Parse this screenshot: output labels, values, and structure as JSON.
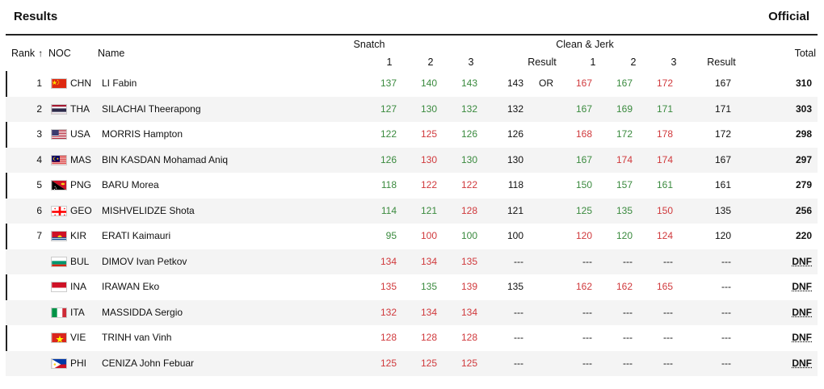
{
  "header": {
    "title": "Results",
    "status": "Official"
  },
  "columns": {
    "rank": "Rank",
    "noc": "NOC",
    "name": "Name",
    "snatch": "Snatch",
    "clean_jerk": "Clean & Jerk",
    "a1": "1",
    "a2": "2",
    "a3": "3",
    "result": "Result",
    "total": "Total"
  },
  "colors": {
    "good_lift": "#3a8a3e",
    "no_lift": "#d0393c"
  },
  "rows": [
    {
      "rank": "1",
      "noc": "CHN",
      "flag": "flag-china",
      "name": "LI Fabin",
      "sn": [
        [
          "137",
          "g"
        ],
        [
          "140",
          "g"
        ],
        [
          "143",
          "g"
        ]
      ],
      "sn_result": "143",
      "record": "OR",
      "cj": [
        [
          "167",
          "x"
        ],
        [
          "167",
          "g"
        ],
        [
          "172",
          "x"
        ]
      ],
      "cj_result": "167",
      "total": "310"
    },
    {
      "rank": "2",
      "noc": "THA",
      "flag": "flag-thailand",
      "name": "SILACHAI Theerapong",
      "sn": [
        [
          "127",
          "g"
        ],
        [
          "130",
          "g"
        ],
        [
          "132",
          "g"
        ]
      ],
      "sn_result": "132",
      "record": "",
      "cj": [
        [
          "167",
          "g"
        ],
        [
          "169",
          "g"
        ],
        [
          "171",
          "g"
        ]
      ],
      "cj_result": "171",
      "total": "303"
    },
    {
      "rank": "3",
      "noc": "USA",
      "flag": "flag-usa",
      "name": "MORRIS Hampton",
      "sn": [
        [
          "122",
          "g"
        ],
        [
          "125",
          "x"
        ],
        [
          "126",
          "g"
        ]
      ],
      "sn_result": "126",
      "record": "",
      "cj": [
        [
          "168",
          "x"
        ],
        [
          "172",
          "g"
        ],
        [
          "178",
          "x"
        ]
      ],
      "cj_result": "172",
      "total": "298"
    },
    {
      "rank": "4",
      "noc": "MAS",
      "flag": "flag-malaysia",
      "name": "BIN KASDAN Mohamad Aniq",
      "sn": [
        [
          "126",
          "g"
        ],
        [
          "130",
          "x"
        ],
        [
          "130",
          "g"
        ]
      ],
      "sn_result": "130",
      "record": "",
      "cj": [
        [
          "167",
          "g"
        ],
        [
          "174",
          "x"
        ],
        [
          "174",
          "x"
        ]
      ],
      "cj_result": "167",
      "total": "297"
    },
    {
      "rank": "5",
      "noc": "PNG",
      "flag": "flag-papua-new-guinea",
      "name": "BARU Morea",
      "sn": [
        [
          "118",
          "g"
        ],
        [
          "122",
          "x"
        ],
        [
          "122",
          "x"
        ]
      ],
      "sn_result": "118",
      "record": "",
      "cj": [
        [
          "150",
          "g"
        ],
        [
          "157",
          "g"
        ],
        [
          "161",
          "g"
        ]
      ],
      "cj_result": "161",
      "total": "279"
    },
    {
      "rank": "6",
      "noc": "GEO",
      "flag": "flag-georgia",
      "name": "MISHVELIDZE Shota",
      "sn": [
        [
          "114",
          "g"
        ],
        [
          "121",
          "g"
        ],
        [
          "128",
          "x"
        ]
      ],
      "sn_result": "121",
      "record": "",
      "cj": [
        [
          "125",
          "g"
        ],
        [
          "135",
          "g"
        ],
        [
          "150",
          "x"
        ]
      ],
      "cj_result": "135",
      "total": "256"
    },
    {
      "rank": "7",
      "noc": "KIR",
      "flag": "flag-kiribati",
      "name": "ERATI Kaimauri",
      "sn": [
        [
          "95",
          "g"
        ],
        [
          "100",
          "x"
        ],
        [
          "100",
          "g"
        ]
      ],
      "sn_result": "100",
      "record": "",
      "cj": [
        [
          "120",
          "x"
        ],
        [
          "120",
          "g"
        ],
        [
          "124",
          "x"
        ]
      ],
      "cj_result": "120",
      "total": "220"
    },
    {
      "rank": "",
      "noc": "BUL",
      "flag": "flag-bulgaria",
      "name": "DIMOV Ivan Petkov",
      "sn": [
        [
          "134",
          "x"
        ],
        [
          "134",
          "x"
        ],
        [
          "135",
          "x"
        ]
      ],
      "sn_result": "---",
      "record": "",
      "cj": [
        [
          "---",
          "n"
        ],
        [
          "---",
          "n"
        ],
        [
          "---",
          "n"
        ]
      ],
      "cj_result": "---",
      "total": "DNF"
    },
    {
      "rank": "",
      "noc": "INA",
      "flag": "flag-indonesia",
      "name": "IRAWAN Eko",
      "sn": [
        [
          "135",
          "x"
        ],
        [
          "135",
          "g"
        ],
        [
          "139",
          "x"
        ]
      ],
      "sn_result": "135",
      "record": "",
      "cj": [
        [
          "162",
          "x"
        ],
        [
          "162",
          "x"
        ],
        [
          "165",
          "x"
        ]
      ],
      "cj_result": "---",
      "total": "DNF"
    },
    {
      "rank": "",
      "noc": "ITA",
      "flag": "flag-italy",
      "name": "MASSIDDA Sergio",
      "sn": [
        [
          "132",
          "x"
        ],
        [
          "134",
          "x"
        ],
        [
          "134",
          "x"
        ]
      ],
      "sn_result": "---",
      "record": "",
      "cj": [
        [
          "---",
          "n"
        ],
        [
          "---",
          "n"
        ],
        [
          "---",
          "n"
        ]
      ],
      "cj_result": "---",
      "total": "DNF"
    },
    {
      "rank": "",
      "noc": "VIE",
      "flag": "flag-vietnam",
      "name": "TRINH van Vinh",
      "sn": [
        [
          "128",
          "x"
        ],
        [
          "128",
          "x"
        ],
        [
          "128",
          "x"
        ]
      ],
      "sn_result": "---",
      "record": "",
      "cj": [
        [
          "---",
          "n"
        ],
        [
          "---",
          "n"
        ],
        [
          "---",
          "n"
        ]
      ],
      "cj_result": "---",
      "total": "DNF"
    },
    {
      "rank": "",
      "noc": "PHI",
      "flag": "flag-philippines",
      "name": "CENIZA John Febuar",
      "sn": [
        [
          "125",
          "x"
        ],
        [
          "125",
          "x"
        ],
        [
          "125",
          "x"
        ]
      ],
      "sn_result": "---",
      "record": "",
      "cj": [
        [
          "---",
          "n"
        ],
        [
          "---",
          "n"
        ],
        [
          "---",
          "n"
        ]
      ],
      "cj_result": "---",
      "total": "DNF"
    }
  ]
}
